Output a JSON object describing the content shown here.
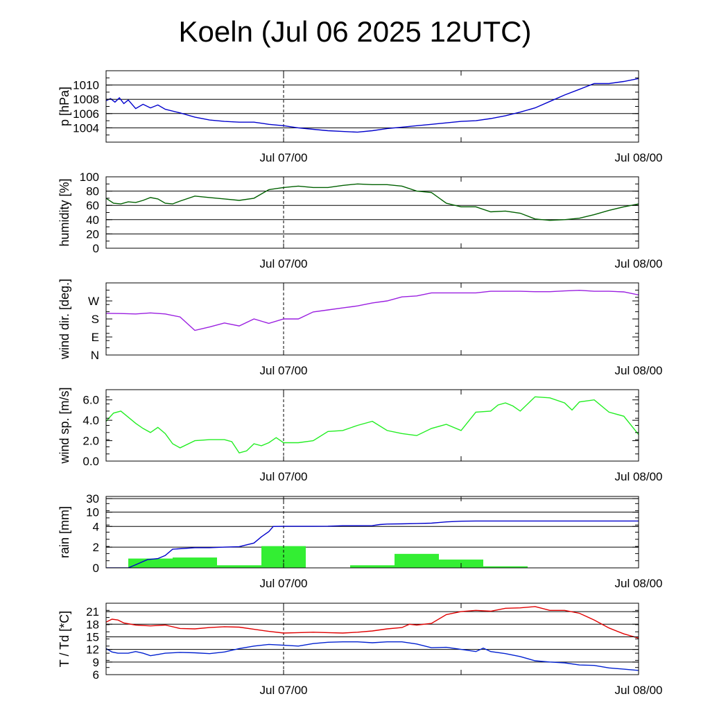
{
  "title": "Koeln (Jul 06 2025 12UTC)",
  "x_axis": {
    "ticks": [
      {
        "hours": 12,
        "label": "Jul 07/00"
      },
      {
        "hours": 36,
        "label": "Jul 08/00"
      }
    ],
    "range_hours": [
      0,
      36
    ],
    "marker_hours": 12
  },
  "chart_data": [
    {
      "type": "line",
      "ylabel": "p [hPa]",
      "ylim": [
        1002,
        1012
      ],
      "yticks": [
        {
          "v": 1004,
          "label": "1004"
        },
        {
          "v": 1006,
          "label": "1006"
        },
        {
          "v": 1008,
          "label": "1008"
        },
        {
          "v": 1010,
          "label": "1010"
        }
      ],
      "grid": [
        1004,
        1006,
        1008,
        1010
      ],
      "series": [
        {
          "color": "#0000cc",
          "x": [
            0,
            0.3,
            0.6,
            0.9,
            1.2,
            1.5,
            2,
            2.5,
            3,
            3.5,
            4,
            5,
            6,
            7,
            8,
            9,
            10,
            11,
            12,
            13,
            14,
            15,
            16,
            17,
            18,
            19,
            20,
            21,
            22,
            23,
            24,
            25,
            26,
            27,
            28,
            29,
            30,
            31,
            32,
            33,
            34,
            35,
            36
          ],
          "y": [
            1007.8,
            1008.1,
            1007.6,
            1008.2,
            1007.4,
            1007.9,
            1006.7,
            1007.3,
            1006.8,
            1007.2,
            1006.6,
            1006.1,
            1005.5,
            1005.1,
            1004.9,
            1004.8,
            1004.8,
            1004.5,
            1004.3,
            1004.0,
            1003.8,
            1003.6,
            1003.5,
            1003.4,
            1003.6,
            1003.9,
            1004.1,
            1004.3,
            1004.5,
            1004.7,
            1004.9,
            1005.0,
            1005.3,
            1005.7,
            1006.2,
            1006.8,
            1007.7,
            1008.6,
            1009.4,
            1010.2,
            1010.2,
            1010.5,
            1010.9
          ]
        }
      ]
    },
    {
      "type": "line",
      "ylabel": "humidity [%]",
      "ylim": [
        0,
        100
      ],
      "yticks": [
        {
          "v": 0,
          "label": "0"
        },
        {
          "v": 20,
          "label": "20"
        },
        {
          "v": 40,
          "label": "40"
        },
        {
          "v": 60,
          "label": "60"
        },
        {
          "v": 80,
          "label": "80"
        },
        {
          "v": 100,
          "label": "100"
        }
      ],
      "grid": [
        20,
        40,
        60,
        80
      ],
      "series": [
        {
          "color": "#006000",
          "x": [
            0,
            0.5,
            1,
            1.5,
            2,
            2.5,
            3,
            3.5,
            4,
            4.5,
            5,
            6,
            7,
            8,
            9,
            10,
            11,
            12,
            13,
            14,
            15,
            16,
            17,
            18,
            19,
            20,
            21,
            22,
            23,
            24,
            25,
            26,
            27,
            28,
            29,
            30,
            31,
            32,
            33,
            34,
            35,
            36
          ],
          "y": [
            70,
            63,
            62,
            65,
            64,
            67,
            71,
            69,
            63,
            62,
            66,
            73,
            71,
            69,
            67,
            70,
            82,
            85,
            87,
            85,
            85,
            88,
            90,
            89,
            89,
            87,
            80,
            78,
            63,
            58,
            58,
            51,
            52,
            49,
            41,
            39,
            40,
            42,
            47,
            53,
            58,
            62
          ]
        }
      ]
    },
    {
      "type": "line",
      "ylabel": "wind dir. [deg.]",
      "ylim": [
        0,
        360
      ],
      "yticks": [
        {
          "v": 0,
          "label": "N"
        },
        {
          "v": 90,
          "label": "E"
        },
        {
          "v": 180,
          "label": "S"
        },
        {
          "v": 270,
          "label": "W"
        }
      ],
      "grid": [],
      "series": [
        {
          "color": "#9a1ee0",
          "x": [
            0,
            1,
            2,
            3,
            4,
            5,
            6,
            7,
            8,
            9,
            10,
            11,
            12,
            13,
            14,
            15,
            16,
            17,
            18,
            19,
            20,
            21,
            22,
            23,
            24,
            25,
            26,
            27,
            28,
            29,
            30,
            31,
            32,
            33,
            34,
            35,
            36
          ],
          "y": [
            208,
            207,
            205,
            210,
            205,
            190,
            123,
            140,
            160,
            145,
            180,
            158,
            180,
            180,
            215,
            225,
            235,
            245,
            260,
            270,
            290,
            295,
            310,
            310,
            310,
            310,
            318,
            318,
            318,
            316,
            316,
            320,
            323,
            318,
            318,
            315,
            300
          ]
        }
      ]
    },
    {
      "type": "line",
      "ylabel": "wind sp. [m/s]",
      "ylim": [
        0,
        7
      ],
      "yticks": [
        {
          "v": 0,
          "label": "0.0"
        },
        {
          "v": 2,
          "label": "2.0"
        },
        {
          "v": 4,
          "label": "4.0"
        },
        {
          "v": 6,
          "label": "6.0"
        }
      ],
      "grid": [],
      "series": [
        {
          "color": "#22ee22",
          "x": [
            0,
            0.5,
            1,
            1.5,
            2,
            2.5,
            3,
            3.5,
            4,
            4.5,
            5,
            6,
            7,
            8,
            8.5,
            9,
            9.5,
            10,
            10.5,
            11,
            11.5,
            12,
            13,
            14,
            15,
            16,
            17,
            18,
            19,
            20,
            21,
            22,
            23,
            24,
            25,
            26,
            26.5,
            27,
            27.5,
            28,
            29,
            30,
            31,
            31.5,
            32,
            33,
            34,
            35,
            36
          ],
          "y": [
            3.9,
            4.7,
            4.9,
            4.3,
            3.7,
            3.2,
            2.8,
            3.3,
            2.7,
            1.7,
            1.3,
            2.0,
            2.1,
            2.1,
            1.9,
            0.8,
            1.0,
            1.7,
            1.5,
            1.8,
            2.3,
            1.8,
            1.8,
            2.0,
            2.9,
            3.0,
            3.5,
            3.9,
            3.0,
            2.7,
            2.5,
            3.2,
            3.6,
            3.0,
            4.8,
            4.9,
            5.5,
            5.7,
            5.4,
            4.9,
            6.3,
            6.2,
            5.7,
            5.0,
            5.8,
            6.0,
            4.8,
            4.4,
            2.6
          ]
        }
      ]
    },
    {
      "type": "bar",
      "ylabel": "rain [mm]",
      "ylim": [
        0,
        30
      ],
      "yticks": [
        {
          "v": 0,
          "label": "0"
        },
        {
          "v": 2,
          "label": "2"
        },
        {
          "v": 4,
          "label": "4"
        },
        {
          "v": 10,
          "label": "10"
        },
        {
          "v": 30,
          "label": "30"
        }
      ],
      "grid": [
        2,
        4,
        10,
        30
      ],
      "bars": [
        {
          "start": 1.5,
          "end": 4.5,
          "value": 0.9
        },
        {
          "start": 4.5,
          "end": 7.5,
          "value": 1.0
        },
        {
          "start": 7.5,
          "end": 10.5,
          "value": 0.25
        },
        {
          "start": 10.5,
          "end": 13.5,
          "value": 2.1
        },
        {
          "start": 16.5,
          "end": 19.5,
          "value": 0.25
        },
        {
          "start": 19.5,
          "end": 22.5,
          "value": 1.35
        },
        {
          "start": 22.5,
          "end": 25.5,
          "value": 0.8
        },
        {
          "start": 25.5,
          "end": 28.5,
          "value": 0.15
        }
      ],
      "series": [
        {
          "color": "#0000cc",
          "x": [
            0,
            1.5,
            2,
            2.8,
            3.5,
            4.0,
            4.5,
            6,
            7,
            8,
            9,
            10,
            10.5,
            11,
            11.3,
            12,
            13,
            14,
            15,
            16,
            17,
            18,
            18.5,
            19,
            20,
            21,
            22,
            23,
            24,
            25,
            30,
            36
          ],
          "y": [
            0,
            0,
            0.3,
            0.8,
            0.9,
            1.2,
            1.8,
            1.95,
            1.95,
            2.0,
            2.05,
            2.4,
            3.0,
            3.5,
            4.0,
            4.05,
            4.05,
            4.05,
            4.1,
            4.3,
            4.3,
            4.35,
            4.8,
            5.0,
            5.1,
            5.2,
            5.4,
            5.9,
            6.2,
            6.3,
            6.3,
            6.3
          ]
        }
      ]
    },
    {
      "type": "line",
      "ylabel": "T / Td [*C]",
      "ylim": [
        6,
        23
      ],
      "yticks": [
        {
          "v": 6,
          "label": "6"
        },
        {
          "v": 9,
          "label": "9"
        },
        {
          "v": 12,
          "label": "12"
        },
        {
          "v": 15,
          "label": "15"
        },
        {
          "v": 18,
          "label": "18"
        },
        {
          "v": 21,
          "label": "21"
        }
      ],
      "grid": [
        9,
        12,
        15,
        18,
        21
      ],
      "series": [
        {
          "color": "#e00000",
          "x": [
            0,
            0.4,
            0.8,
            1.2,
            2,
            3,
            4,
            5,
            6,
            7,
            8,
            9,
            10,
            11,
            12,
            13,
            14,
            15,
            16,
            17,
            18,
            19,
            20,
            20.5,
            21,
            22,
            23,
            24,
            25,
            26,
            27,
            28,
            29,
            30,
            31,
            32,
            33,
            34,
            35,
            36
          ],
          "y": [
            18.5,
            19.2,
            19.0,
            18.3,
            17.8,
            17.6,
            17.8,
            17.0,
            16.9,
            17.2,
            17.4,
            17.3,
            16.8,
            16.3,
            15.9,
            16.0,
            16.1,
            16.0,
            15.9,
            16.1,
            16.4,
            16.9,
            17.2,
            18.0,
            17.8,
            18.2,
            20.3,
            21.0,
            21.3,
            21.1,
            21.8,
            21.9,
            22.2,
            21.3,
            21.3,
            20.6,
            19.0,
            17.1,
            15.7,
            14.7
          ]
        },
        {
          "color": "#0020d0",
          "x": [
            0,
            0.4,
            0.8,
            1.5,
            2,
            2.5,
            3,
            3.5,
            4,
            5,
            6,
            7,
            8,
            9,
            10,
            11,
            12,
            13,
            14,
            15,
            16,
            17,
            18,
            19,
            20,
            21,
            22,
            23,
            24,
            25,
            25.5,
            26,
            27,
            28,
            29,
            30,
            31,
            32,
            33,
            34,
            35,
            36
          ],
          "y": [
            12.2,
            11.4,
            11.1,
            11.1,
            11.5,
            11.1,
            10.5,
            10.8,
            11.1,
            11.3,
            11.2,
            11.0,
            11.4,
            12.2,
            12.8,
            13.2,
            13.0,
            12.8,
            13.4,
            13.7,
            13.8,
            13.8,
            13.6,
            13.8,
            13.8,
            13.3,
            12.4,
            12.5,
            12.0,
            11.5,
            12.3,
            11.5,
            11.0,
            10.3,
            9.3,
            9.0,
            8.8,
            8.3,
            8.2,
            7.6,
            7.3,
            7.0
          ]
        }
      ]
    }
  ]
}
